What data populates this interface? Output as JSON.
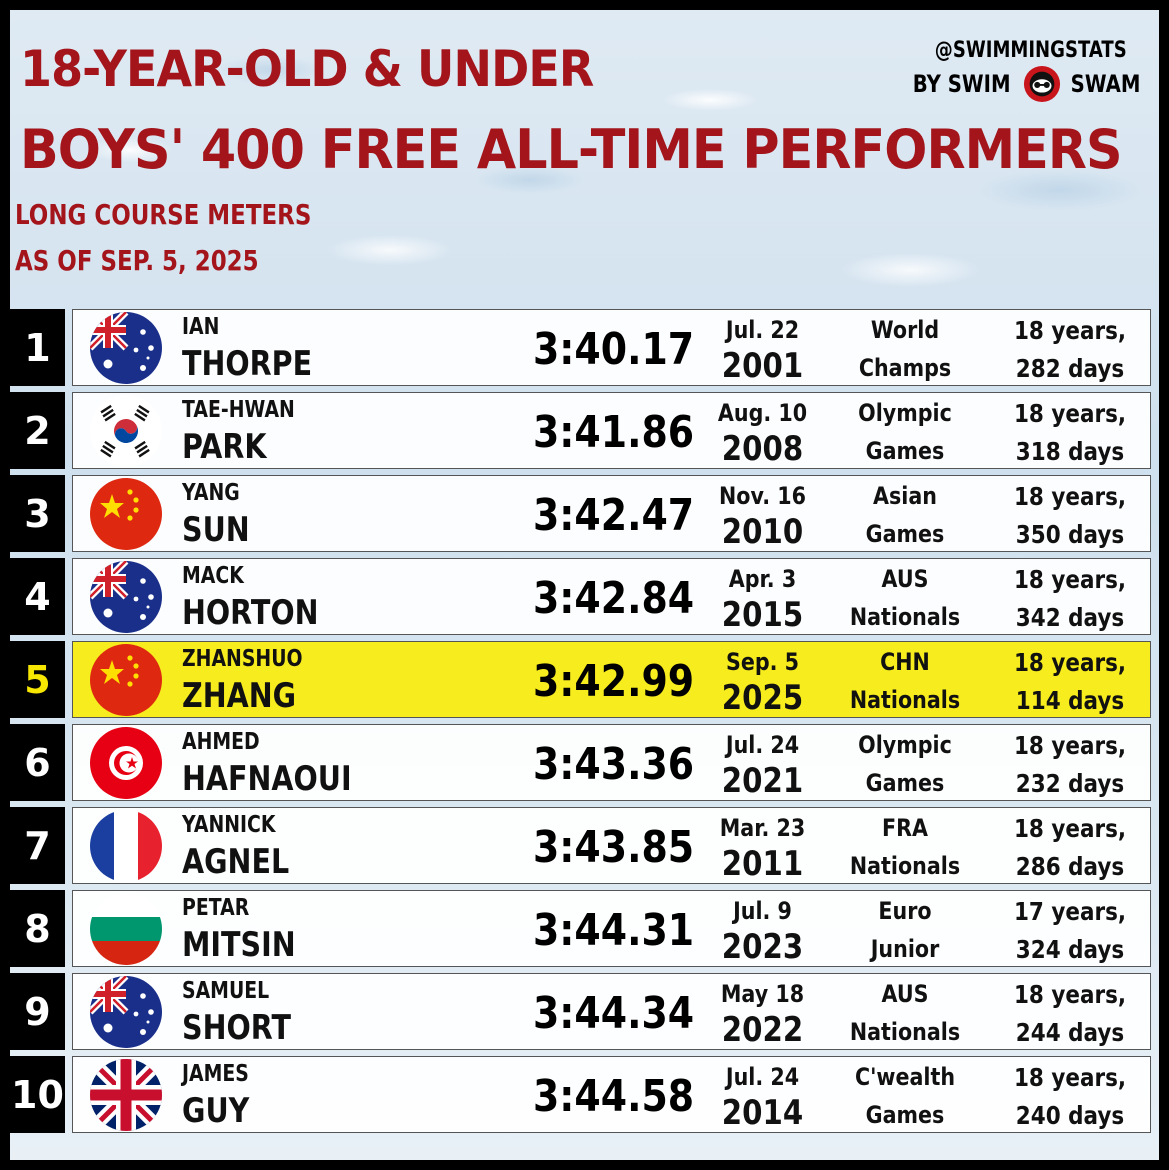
{
  "header": {
    "title_line1": "18-YEAR-OLD & UNDER",
    "title_line2": "BOYS' 400 FREE ALL-TIME PERFORMERS",
    "course": "LONG COURSE METERS",
    "as_of": "AS OF SEP. 5, 2025"
  },
  "brand": {
    "handle": "@SWIMMINGSTATS",
    "by_left": "BY SWIM",
    "by_right": "SWAM"
  },
  "colors": {
    "title_red": "#a3141b",
    "highlight_yellow": "#f7ec1d",
    "rank_highlight": "#f6e600"
  },
  "rows": [
    {
      "rank": "1",
      "first": "IAN",
      "last": "THORPE",
      "flag": "australia-flag",
      "time": "3:40.17",
      "date": "Jul. 22",
      "year": "2001",
      "meet1": "World",
      "meet2": "Champs",
      "age1": "18 years,",
      "age2": "282 days"
    },
    {
      "rank": "2",
      "first": "TAE-HWAN",
      "last": "PARK",
      "flag": "south-korea-flag",
      "time": "3:41.86",
      "date": "Aug. 10",
      "year": "2008",
      "meet1": "Olympic",
      "meet2": "Games",
      "age1": "18 years,",
      "age2": "318 days"
    },
    {
      "rank": "3",
      "first": "YANG",
      "last": "SUN",
      "flag": "china-flag",
      "time": "3:42.47",
      "date": "Nov. 16",
      "year": "2010",
      "meet1": "Asian",
      "meet2": "Games",
      "age1": "18 years,",
      "age2": "350 days"
    },
    {
      "rank": "4",
      "first": "MACK",
      "last": "HORTON",
      "flag": "australia-flag",
      "time": "3:42.84",
      "date": "Apr. 3",
      "year": "2015",
      "meet1": "AUS",
      "meet2": "Nationals",
      "age1": "18 years,",
      "age2": "342 days"
    },
    {
      "rank": "5",
      "first": "ZHANSHUO",
      "last": "ZHANG",
      "flag": "china-flag",
      "time": "3:42.99",
      "date": "Sep. 5",
      "year": "2025",
      "meet1": "CHN",
      "meet2": "Nationals",
      "age1": "18 years,",
      "age2": "114 days",
      "highlight": true
    },
    {
      "rank": "6",
      "first": "AHMED",
      "last": "HAFNAOUI",
      "flag": "tunisia-flag",
      "time": "3:43.36",
      "date": "Jul. 24",
      "year": "2021",
      "meet1": "Olympic",
      "meet2": "Games",
      "age1": "18 years,",
      "age2": "232 days"
    },
    {
      "rank": "7",
      "first": "YANNICK",
      "last": "AGNEL",
      "flag": "france-flag",
      "time": "3:43.85",
      "date": "Mar. 23",
      "year": "2011",
      "meet1": "FRA",
      "meet2": "Nationals",
      "age1": "18 years,",
      "age2": "286 days"
    },
    {
      "rank": "8",
      "first": "PETAR",
      "last": "MITSIN",
      "flag": "bulgaria-flag",
      "time": "3:44.31",
      "date": "Jul. 9",
      "year": "2023",
      "meet1": "Euro",
      "meet2": "Junior",
      "age1": "17 years,",
      "age2": "324 days"
    },
    {
      "rank": "9",
      "first": "SAMUEL",
      "last": "SHORT",
      "flag": "australia-flag",
      "time": "3:44.34",
      "date": "May 18",
      "year": "2022",
      "meet1": "AUS",
      "meet2": "Nationals",
      "age1": "18 years,",
      "age2": "244 days"
    },
    {
      "rank": "10",
      "first": "JAMES",
      "last": "GUY",
      "flag": "great-britain-flag",
      "time": "3:44.58",
      "date": "Jul. 24",
      "year": "2014",
      "meet1": "C'wealth",
      "meet2": "Games",
      "age1": "18 years,",
      "age2": "240 days"
    }
  ]
}
